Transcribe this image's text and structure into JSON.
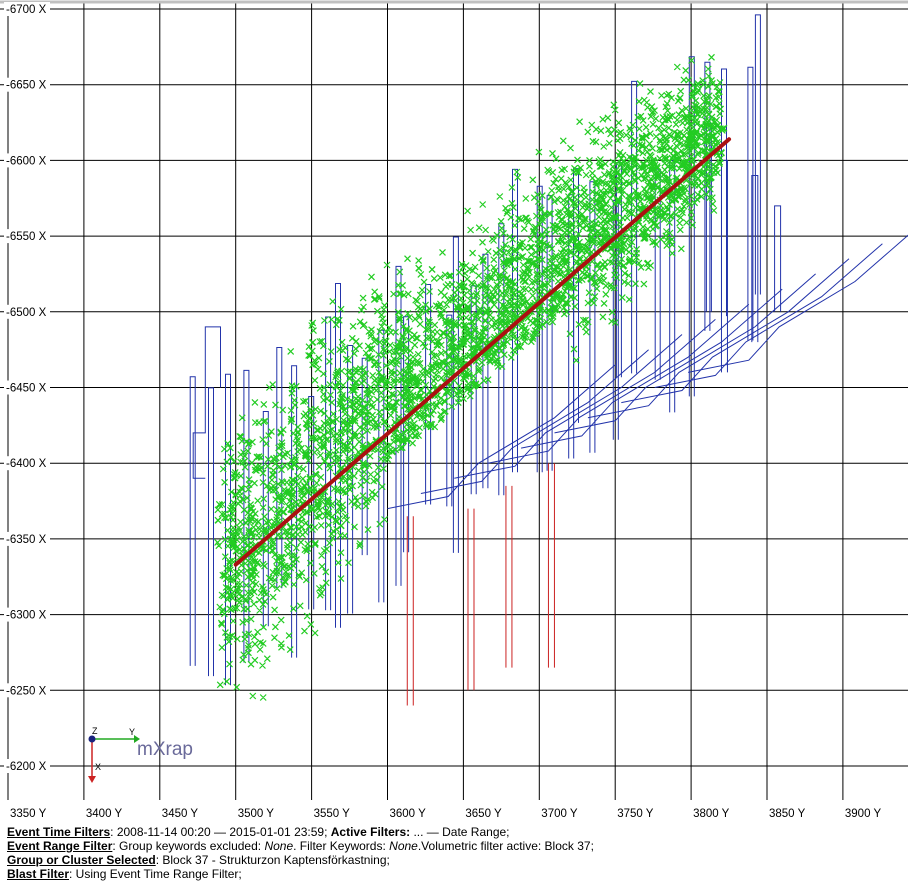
{
  "chart_data": {
    "type": "scatter",
    "xlabel": "",
    "ylabel": "",
    "x_ticks": [
      "3350 Y",
      "3400 Y",
      "3450 Y",
      "3500 Y",
      "3550 Y",
      "3600 Y",
      "3650 Y",
      "3700 Y",
      "3750 Y",
      "3800 Y",
      "3850 Y",
      "3900 Y"
    ],
    "y_ticks": [
      "-6700 X",
      "-6650 X",
      "-6600 X",
      "-6550 X",
      "-6500 X",
      "-6450 X",
      "-6400 X",
      "-6350 X",
      "-6300 X",
      "-6250 X",
      "-6200 X"
    ],
    "xlim": [
      3345,
      3910
    ],
    "ylim": [
      -6190,
      -6700
    ],
    "grid": true,
    "colors": {
      "events": "#22cc22",
      "tunnels": "#2233aa",
      "boreholes": "#cc2222",
      "trend_line": "#aa1111"
    },
    "trend_line": {
      "x": [
        3500,
        3825
      ],
      "y": [
        -6333,
        -6614
      ]
    },
    "event_cloud": {
      "x": [
        3490,
        3520,
        3550,
        3580,
        3610,
        3640,
        3670,
        3700,
        3730,
        3760,
        3790,
        3820
      ],
      "y_center": [
        -6335,
        -6355,
        -6395,
        -6425,
        -6450,
        -6470,
        -6500,
        -6525,
        -6550,
        -6575,
        -6600,
        -6620
      ],
      "spread": [
        110,
        120,
        125,
        115,
        100,
        95,
        95,
        95,
        90,
        85,
        75,
        55
      ]
    },
    "boreholes": [
      {
        "x": 3615,
        "y_top": -6365,
        "y_bottom": -6240
      },
      {
        "x": 3655,
        "y_top": -6370,
        "y_bottom": -6250
      },
      {
        "x": 3680,
        "y_top": -6385,
        "y_bottom": -6265
      },
      {
        "x": 3708,
        "y_top": -6400,
        "y_bottom": -6265
      }
    ]
  },
  "axes_indicator": {
    "z": "Z",
    "y": "Y",
    "x": "X"
  },
  "logo": "mXrap",
  "footer": {
    "time_label": "Event Time Filters",
    "time_value": ": 2008-11-14 00:20 — 2015-01-01 23:59; ",
    "active_label": "Active Filters:",
    "active_value": " ... — Date Range;",
    "range_label": "Event Range Filter",
    "range_value_1": ": Group keywords excluded: ",
    "range_none_1": "None",
    "range_value_2": ". Filter Keywords: ",
    "range_none_2": "None",
    "range_value_3": ".Volumetric filter active: Block 37;",
    "group_label": "Group or Cluster Selected",
    "group_value": ": Block 37 - Strukturzon Kaptensförkastning;",
    "blast_label": "Blast Filter",
    "blast_value": ": Using Event Time Range Filter;"
  }
}
